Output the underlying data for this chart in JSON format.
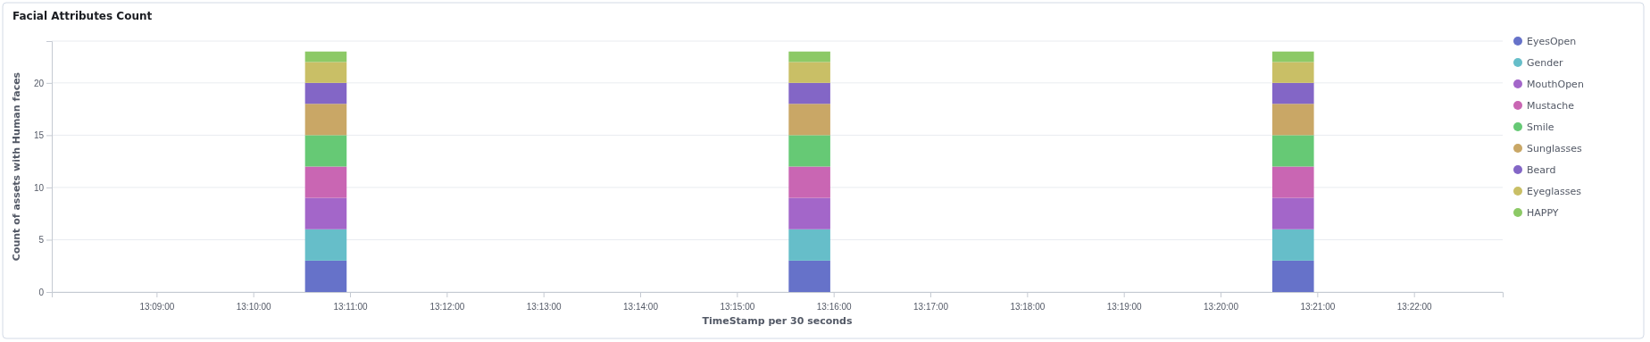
{
  "chart_data": {
    "type": "bar",
    "title": "Facial Attributes Count",
    "xlabel": "TimeStamp per 30 seconds",
    "ylabel": "Count of assets with Human faces",
    "stacked": true,
    "grid": "y",
    "legend": "right",
    "x": [
      13.179167,
      13.2625,
      13.345833
    ],
    "xlim": [
      13.131944,
      13.381944
    ],
    "xticks": [
      {
        "value": 13.15,
        "label": "13:09:00"
      },
      {
        "value": 13.166667,
        "label": "13:10:00"
      },
      {
        "value": 13.183333,
        "label": "13:11:00"
      },
      {
        "value": 13.2,
        "label": "13:12:00"
      },
      {
        "value": 13.216667,
        "label": "13:13:00"
      },
      {
        "value": 13.233333,
        "label": "13:14:00"
      },
      {
        "value": 13.25,
        "label": "13:15:00"
      },
      {
        "value": 13.266667,
        "label": "13:16:00"
      },
      {
        "value": 13.283333,
        "label": "13:17:00"
      },
      {
        "value": 13.3,
        "label": "13:18:00"
      },
      {
        "value": 13.316667,
        "label": "13:19:00"
      },
      {
        "value": 13.333333,
        "label": "13:20:00"
      },
      {
        "value": 13.35,
        "label": "13:21:00"
      },
      {
        "value": 13.366667,
        "label": "13:22:00"
      }
    ],
    "ylim": [
      0,
      24
    ],
    "yticks": [
      0,
      5,
      10,
      15,
      20
    ],
    "series": [
      {
        "name": "EyesOpen",
        "color": "#6672c9",
        "values": [
          3,
          3,
          3
        ]
      },
      {
        "name": "Gender",
        "color": "#66bec9",
        "values": [
          3,
          3,
          3
        ]
      },
      {
        "name": "MouthOpen",
        "color": "#a366c9",
        "values": [
          3,
          3,
          3
        ]
      },
      {
        "name": "Mustache",
        "color": "#c966b3",
        "values": [
          3,
          3,
          3
        ]
      },
      {
        "name": "Smile",
        "color": "#66c975",
        "values": [
          3,
          3,
          3
        ]
      },
      {
        "name": "Sunglasses",
        "color": "#c9a766",
        "values": [
          3,
          3,
          3
        ]
      },
      {
        "name": "Beard",
        "color": "#8366c6",
        "values": [
          2,
          2,
          2
        ]
      },
      {
        "name": "Eyeglasses",
        "color": "#c9bf66",
        "values": [
          2,
          2,
          2
        ]
      },
      {
        "name": "HAPPY",
        "color": "#8cc966",
        "values": [
          1,
          1,
          1
        ]
      }
    ]
  }
}
